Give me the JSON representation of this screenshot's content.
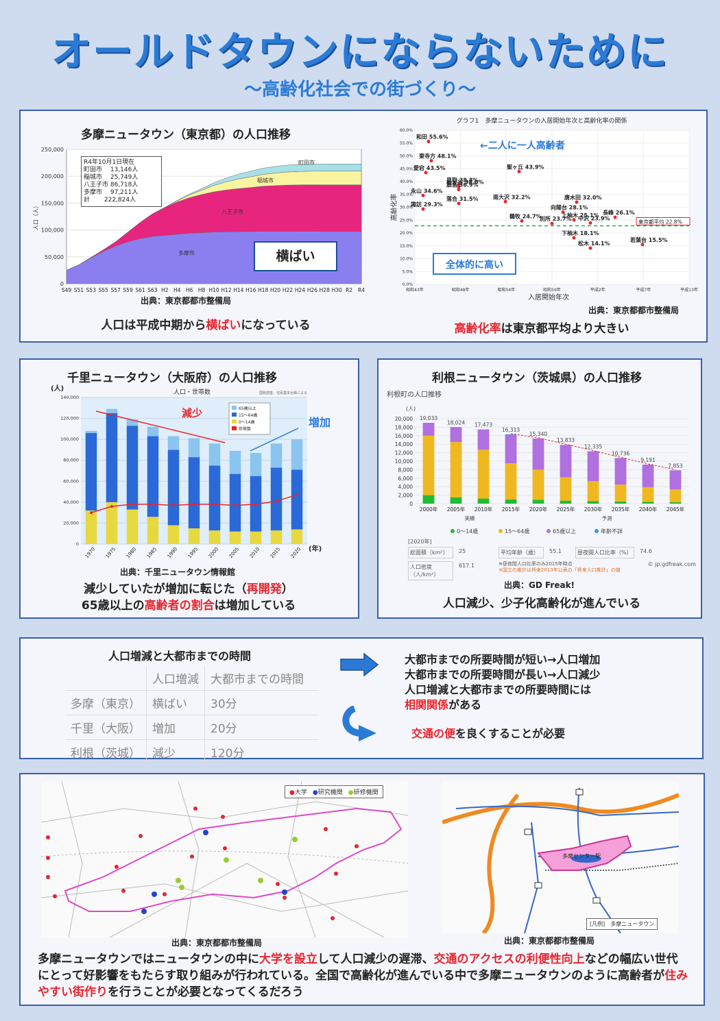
{
  "header": {
    "title": "オールドタウンにならないために",
    "subtitle": "～高齢化社会での街づくり～"
  },
  "tama": {
    "title": "多摩ニュータウン（東京都）の人口推移",
    "note_lines": [
      "R4年10月1日現在",
      "町田市　 13,146人",
      "稲城市　 25,749人",
      "八王子市 86,718人",
      "多摩市　 97,211人",
      "計　　 222,824人"
    ],
    "area_labels": [
      "町田市",
      "稲城市",
      "八王子市",
      "多摩市"
    ],
    "callout": "横ばい",
    "source": "出典：東京都都市整備局",
    "caption_pre": "人口は平成中期から",
    "caption_hl": "横ばい",
    "caption_post": "になっている"
  },
  "aging": {
    "chart_title": "グラフ1　多摩ニュータウンの入居開始年次と高齢化率の関係",
    "callout_top": "←二人に一人高齢者",
    "callout_bottom": "全体的に高い",
    "source": "出典：東京都都市整備局",
    "caption_hl": "高齢化率",
    "caption_post": "は東京都平均より大きい"
  },
  "senri": {
    "title": "千里ニュータウン（大阪府）の人口推移",
    "unit": "(人)",
    "chart_title": "人口・世帯数",
    "chart_note": "国勢調査、住民基本台帳による",
    "legend": [
      "65歳以上",
      "15～64歳",
      "0～14歳",
      "世帯数"
    ],
    "decrease": "減少",
    "increase": "増加",
    "year_unit": "(年)",
    "source": "出典：千里ニュータウン情報館",
    "caption1_pre": "減少していたが増加に転じた（",
    "caption1_hl": "再開発",
    "caption1_post": "）",
    "caption2_pre": "65歳以上の",
    "caption2_hl": "高齢者の割合",
    "caption2_post": "は増加している"
  },
  "tone": {
    "title": "利根ニュータウン（茨城県）の人口推移",
    "chart_title": "利根町の人口推移",
    "unit": "(人)",
    "period_labels": [
      "実績",
      "予測"
    ],
    "legend": [
      "0～14歳",
      "15～64歳",
      "65歳以上",
      "年齢不詳"
    ],
    "info_header": "[2020年]",
    "info": [
      "総面積（km²）",
      "25",
      "平均年齢（歳）",
      "55.1",
      "昼夜間人口比率（%）",
      "74.6",
      "人口密度（人/km²）",
      "617.1"
    ],
    "info_note1": "※昼夜間人口比率のみ2015年時点",
    "info_note2": "※国立の推計は将来2013年公表の「将来人口推計」の値",
    "credit": "© jp.gdfreak.com",
    "source": "出典：GD Freak!",
    "caption": "人口減少、少子化高齢化が進んでいる"
  },
  "time": {
    "title": "人口増減と大都市までの時間",
    "headers": [
      "",
      "人口増減",
      "大都市までの時間"
    ],
    "rows": [
      [
        "多摩（東京）",
        "横ばい",
        "30分"
      ],
      [
        "千里（大阪）",
        "増加",
        "20分"
      ],
      [
        "利根（茨城）",
        "減少",
        "120分"
      ]
    ],
    "line1": "大都市までの所要時間が短い→人口増加",
    "line2": "大都市までの所要時間が長い→人口減少",
    "line3": "人口増減と大都市までの所要時間には",
    "line4_hl": "相関関係",
    "line4_post": "がある",
    "line5_hl": "交通の便",
    "line5_post": "を良くすることが必要"
  },
  "maps": {
    "legend": [
      "大学",
      "研究機関",
      "研修機関"
    ],
    "source_left": "出典：東京都都市整備局",
    "source_right": "出典：東京都都市整備局",
    "map_right_legend": "[凡例]　多摩ニュータウン",
    "map_right_center": "多摩センター駅"
  },
  "conclusion": {
    "p1": "多摩ニュータウンではニュータウンの中に",
    "h1": "大学を設立",
    "p2": "して人口減少の遅滞、",
    "h2": "交通のアクセスの利便性向上",
    "p3": "などの幅広い世代にとって好影響をもたらす取り組みが行われている。全国で高齢化が進んでいる中で多摩ニュータウンのように高齢者が",
    "h3": "住みやすい街作り",
    "p4": "を行うことが必要となってくるだろう"
  },
  "chart_data": [
    {
      "type": "area",
      "id": "tama",
      "categories": [
        "S49",
        "S51",
        "S53",
        "S55",
        "S57",
        "S59",
        "S61",
        "S63",
        "H2",
        "H4",
        "H6",
        "H8",
        "H10",
        "H12",
        "H14",
        "H16",
        "H18",
        "H20",
        "H22",
        "H24",
        "H26",
        "H28",
        "H30",
        "R2",
        "R4"
      ],
      "series": [
        {
          "name": "多摩市",
          "values": [
            25000,
            35000,
            48000,
            60000,
            70000,
            78000,
            84000,
            88000,
            90000,
            92000,
            94000,
            95000,
            96000,
            96500,
            97000,
            97000,
            97500,
            97500,
            97500,
            97400,
            97300,
            97200,
            97200,
            97200,
            97211
          ]
        },
        {
          "name": "八王子市",
          "values": [
            0,
            0,
            1000,
            3000,
            8000,
            18000,
            30000,
            42000,
            52000,
            60000,
            66000,
            71000,
            75000,
            78000,
            80000,
            82000,
            84000,
            85000,
            86000,
            86500,
            86700,
            86700,
            86700,
            86718,
            86718
          ]
        },
        {
          "name": "稲城市",
          "values": [
            0,
            0,
            0,
            0,
            0,
            0,
            0,
            0,
            0,
            2000,
            5000,
            8000,
            12000,
            15000,
            18000,
            20000,
            22000,
            23500,
            24500,
            25000,
            25500,
            25700,
            25749,
            25749,
            25749
          ]
        },
        {
          "name": "町田市",
          "values": [
            0,
            0,
            0,
            0,
            0,
            0,
            0,
            0,
            0,
            1000,
            2000,
            3000,
            5000,
            7000,
            9000,
            10500,
            11500,
            12300,
            12800,
            13000,
            13100,
            13146,
            13146,
            13146,
            13146
          ]
        }
      ],
      "ylim": [
        0,
        250000
      ],
      "yticks": [
        "0",
        "50,000",
        "100,000",
        "150,000",
        "200,000",
        "250,000"
      ],
      "ylabel": "人口（人）"
    },
    {
      "type": "scatter",
      "id": "aging",
      "xlabel": "入居開始年次",
      "ylabel": "高齢化率",
      "xticks": [
        "昭和43年",
        "昭和48年",
        "昭和54年",
        "昭和59年",
        "平成2年",
        "平成7年",
        "平成13年"
      ],
      "yticks": [
        "0.0%",
        "5.0%",
        "10.0%",
        "15.0%",
        "20.0%",
        "25.0%",
        "30.0%",
        "35.0%",
        "40.0%",
        "45.0%",
        "50.0%",
        "55.0%",
        "60.0%"
      ],
      "ylim": [
        0,
        60
      ],
      "average_label": "東京都平均 22.8%",
      "average": 22.8,
      "points": [
        {
          "label": "和田 55.6%",
          "x": 0.05,
          "y": 55.6
        },
        {
          "label": "東寺方 48.1%",
          "x": 0.06,
          "y": 48.1
        },
        {
          "label": "愛宕 43.5%",
          "x": 0.04,
          "y": 43.5
        },
        {
          "label": "貝取 38.8%",
          "x": 0.16,
          "y": 38.8
        },
        {
          "label": "松が谷 38.0%",
          "x": 0.16,
          "y": 38.0
        },
        {
          "label": "鹿島 36.9%",
          "x": 0.16,
          "y": 36.9
        },
        {
          "label": "聖ヶ丘 43.9%",
          "x": 0.38,
          "y": 43.9
        },
        {
          "label": "永山 34.6%",
          "x": 0.03,
          "y": 34.6
        },
        {
          "label": "落合 31.5%",
          "x": 0.16,
          "y": 31.5
        },
        {
          "label": "南大沢 32.2%",
          "x": 0.33,
          "y": 32.2
        },
        {
          "label": "唐木田 32.0%",
          "x": 0.59,
          "y": 32.0
        },
        {
          "label": "向陽台 28.1%",
          "x": 0.54,
          "y": 28.1
        },
        {
          "label": "諏訪 29.3%",
          "x": 0.03,
          "y": 29.3
        },
        {
          "label": "鶴牧 24.7%",
          "x": 0.39,
          "y": 24.7
        },
        {
          "label": "上柚木 25.1%",
          "x": 0.58,
          "y": 25.1
        },
        {
          "label": "長峰 26.1%",
          "x": 0.73,
          "y": 26.1
        },
        {
          "label": "別所 23.7%",
          "x": 0.5,
          "y": 23.7
        },
        {
          "label": "中沢 23.9%",
          "x": 0.64,
          "y": 23.9
        },
        {
          "label": "下柚木 18.1%",
          "x": 0.58,
          "y": 18.1
        },
        {
          "label": "松木 14.1%",
          "x": 0.64,
          "y": 14.1
        },
        {
          "label": "若葉台 15.5%",
          "x": 0.83,
          "y": 15.5
        }
      ]
    },
    {
      "type": "bar",
      "id": "senri",
      "categories": [
        "1970",
        "1975",
        "1980",
        "1985",
        "1990",
        "1995",
        "2000",
        "2005",
        "2010",
        "2015",
        "2020"
      ],
      "series": [
        {
          "name": "0～14歳",
          "values": [
            32000,
            40000,
            33000,
            26000,
            18000,
            15000,
            13000,
            12000,
            12000,
            13000,
            14000
          ]
        },
        {
          "name": "15～64歳",
          "values": [
            74000,
            85000,
            80000,
            77000,
            72000,
            68000,
            62000,
            55000,
            53000,
            60000,
            57000
          ]
        },
        {
          "name": "65歳以上",
          "values": [
            2000,
            4000,
            6000,
            9000,
            13000,
            18000,
            21000,
            22000,
            22000,
            23000,
            29000
          ]
        },
        {
          "name": "世帯数",
          "values": [
            30000,
            36000,
            38000,
            38000,
            37000,
            38000,
            38000,
            37000,
            38000,
            41000,
            47000
          ]
        }
      ],
      "ylim": [
        0,
        140000
      ],
      "yticks": [
        "0",
        "20,000",
        "40,000",
        "60,000",
        "80,000",
        "100,000",
        "120,000",
        "140,000"
      ]
    },
    {
      "type": "bar",
      "id": "tone",
      "categories": [
        "2000年",
        "2005年",
        "2010年",
        "2015年",
        "2020年",
        "2025年",
        "2030年",
        "2035年",
        "2040年",
        "2045年"
      ],
      "totals": [
        19033,
        18024,
        17473,
        16313,
        15340,
        13833,
        12335,
        10736,
        9191,
        7853
      ],
      "series": [
        {
          "name": "0～14歳",
          "values": [
            2000,
            1500,
            1200,
            1000,
            900,
            700,
            600,
            500,
            400,
            350
          ]
        },
        {
          "name": "15～64歳",
          "values": [
            14000,
            13000,
            11500,
            8500,
            7100,
            5500,
            4700,
            4000,
            3500,
            3000
          ]
        },
        {
          "name": "65歳以上",
          "values": [
            3033,
            3524,
            4773,
            6713,
            7340,
            7633,
            7035,
            6236,
            5291,
            4503
          ]
        },
        {
          "name": "年齢不詳",
          "values": [
            0,
            0,
            0,
            100,
            0,
            0,
            0,
            0,
            0,
            0
          ]
        }
      ],
      "ylim": [
        0,
        20000
      ],
      "yticks": [
        "0",
        "2,000",
        "4,000",
        "6,000",
        "8,000",
        "10,000",
        "12,000",
        "14,000",
        "16,000",
        "18,000",
        "20,000"
      ]
    }
  ]
}
